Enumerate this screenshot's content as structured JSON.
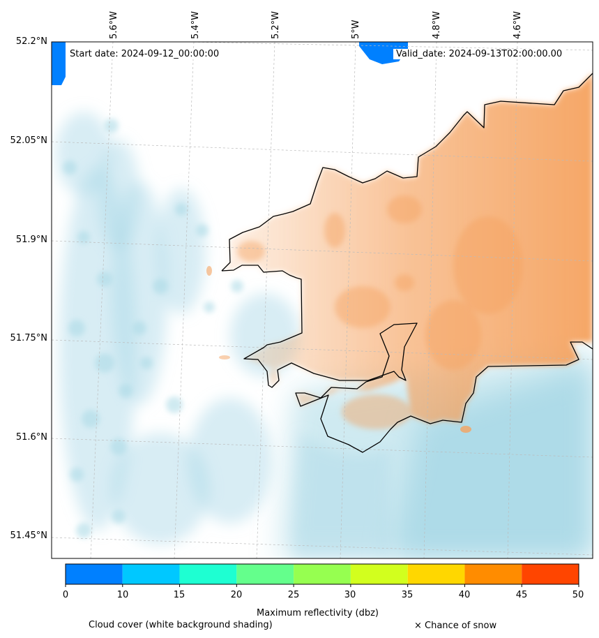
{
  "map": {
    "start_date": "Start date: 2024-09-12_00:00:00",
    "valid_date": "Valid_date: 2024-09-13T02:00:00.00",
    "longitude_labels": [
      "5.6°W",
      "5.4°W",
      "5.2°W",
      "5°W",
      "4.8°W",
      "4.6°W"
    ],
    "latitude_labels": [
      "52.2°N",
      "52.05°N",
      "51.9°N",
      "51.75°N",
      "51.6°N",
      "51.45°N"
    ],
    "region": "Pembrokeshire coast, Wales"
  },
  "colorbar": {
    "label": "Maximum reflectivity (dbz)",
    "ticks": [
      "0",
      "10",
      "15",
      "20",
      "25",
      "30",
      "35",
      "40",
      "45",
      "50"
    ],
    "colors": [
      "#0080ff",
      "#00c8ff",
      "#1effd2",
      "#64ff8c",
      "#96ff50",
      "#d2ff1e",
      "#ffd700",
      "#ff8c00",
      "#ff4500"
    ]
  },
  "legend": {
    "cloud_cover": "Cloud cover (white background shading)",
    "snow": "× Chance of snow"
  },
  "colors": {
    "cloud_shading": "#a8d8e6",
    "land_shading": "#f5a25f",
    "coastline": "#000000"
  }
}
